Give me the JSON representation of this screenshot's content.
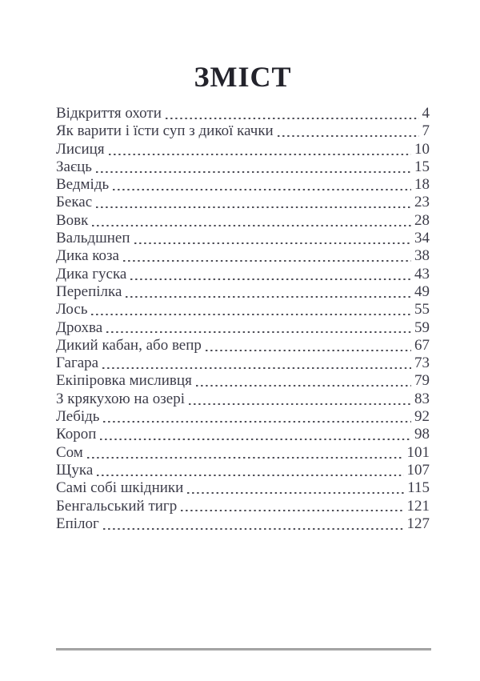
{
  "title": "ЗМІСТ",
  "colors": {
    "text": "#3c3c49",
    "title": "#23232b",
    "dots": "#46464f",
    "rule": "#8e8e8e",
    "page_background": "#ffffff"
  },
  "toc": {
    "entries": [
      {
        "title": "Відкриття охоти",
        "page": "4"
      },
      {
        "title": "Як варити і їсти суп з дикої качки",
        "page": "7"
      },
      {
        "title": "Лисиця",
        "page": "10"
      },
      {
        "title": "Заєць",
        "page": "15"
      },
      {
        "title": "Ведмідь",
        "page": "18"
      },
      {
        "title": "Бекас",
        "page": "23"
      },
      {
        "title": "Вовк",
        "page": "28"
      },
      {
        "title": "Вальдшнеп",
        "page": "34"
      },
      {
        "title": "Дика коза",
        "page": "38"
      },
      {
        "title": "Дика гуска",
        "page": "43"
      },
      {
        "title": "Перепілка",
        "page": "49"
      },
      {
        "title": "Лось",
        "page": "55"
      },
      {
        "title": "Дрохва",
        "page": "59"
      },
      {
        "title": "Дикий кабан, або вепр",
        "page": "67"
      },
      {
        "title": "Гагара",
        "page": "73"
      },
      {
        "title": "Екіпіровка мисливця",
        "page": "79"
      },
      {
        "title": "З крякухою на озері",
        "page": "83"
      },
      {
        "title": "Лебідь",
        "page": "92"
      },
      {
        "title": "Короп",
        "page": "98"
      },
      {
        "title": "Сом",
        "page": "101"
      },
      {
        "title": "Щука",
        "page": "107"
      },
      {
        "title": "Самі собі шкідники",
        "page": "115"
      },
      {
        "title": "Бенгальський тигр",
        "page": "121"
      },
      {
        "title": "Епілог",
        "page": "127"
      }
    ]
  }
}
